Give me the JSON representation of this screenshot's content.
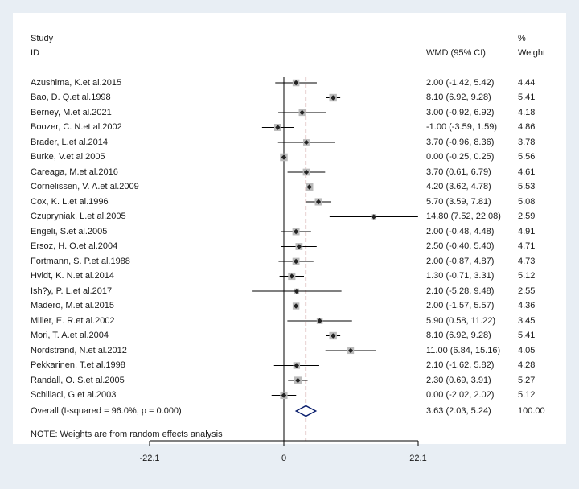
{
  "chart_data": {
    "type": "forest",
    "header": {
      "study_line1": "Study",
      "study_line2": "ID",
      "effect": "WMD (95% CI)",
      "weight_line1": "%",
      "weight_line2": "Weight"
    },
    "studies": [
      {
        "id": "Azushima, K.et al.2015",
        "est": 2.0,
        "lo": -1.42,
        "hi": 5.42,
        "weight": 4.44,
        "ci_text": "2.00 (-1.42, 5.42)",
        "weight_text": "4.44"
      },
      {
        "id": "Bao, D. Q.et al.1998",
        "est": 8.1,
        "lo": 6.92,
        "hi": 9.28,
        "weight": 5.41,
        "ci_text": "8.10 (6.92, 9.28)",
        "weight_text": "5.41"
      },
      {
        "id": "Berney, M.et al.2021",
        "est": 3.0,
        "lo": -0.92,
        "hi": 6.92,
        "weight": 4.18,
        "ci_text": "3.00 (-0.92, 6.92)",
        "weight_text": "4.18"
      },
      {
        "id": "Boozer, C. N.et al.2002",
        "est": -1.0,
        "lo": -3.59,
        "hi": 1.59,
        "weight": 4.86,
        "ci_text": "-1.00 (-3.59, 1.59)",
        "weight_text": "4.86"
      },
      {
        "id": "Brader, L.et al.2014",
        "est": 3.7,
        "lo": -0.96,
        "hi": 8.36,
        "weight": 3.78,
        "ci_text": "3.70 (-0.96, 8.36)",
        "weight_text": "3.78"
      },
      {
        "id": "Burke, V.et al.2005",
        "est": 0.0,
        "lo": -0.25,
        "hi": 0.25,
        "weight": 5.56,
        "ci_text": "0.00 (-0.25, 0.25)",
        "weight_text": "5.56"
      },
      {
        "id": "Careaga, M.et al.2016",
        "est": 3.7,
        "lo": 0.61,
        "hi": 6.79,
        "weight": 4.61,
        "ci_text": "3.70 (0.61, 6.79)",
        "weight_text": "4.61"
      },
      {
        "id": "Cornelissen, V. A.et al.2009",
        "est": 4.2,
        "lo": 3.62,
        "hi": 4.78,
        "weight": 5.53,
        "ci_text": "4.20 (3.62, 4.78)",
        "weight_text": "5.53"
      },
      {
        "id": "Cox, K. L.et al.1996",
        "est": 5.7,
        "lo": 3.59,
        "hi": 7.81,
        "weight": 5.08,
        "ci_text": "5.70 (3.59, 7.81)",
        "weight_text": "5.08"
      },
      {
        "id": "Czupryniak, L.et al.2005",
        "est": 14.8,
        "lo": 7.52,
        "hi": 22.08,
        "weight": 2.59,
        "ci_text": "14.80 (7.52, 22.08)",
        "weight_text": "2.59"
      },
      {
        "id": "Engeli, S.et al.2005",
        "est": 2.0,
        "lo": -0.48,
        "hi": 4.48,
        "weight": 4.91,
        "ci_text": "2.00 (-0.48, 4.48)",
        "weight_text": "4.91"
      },
      {
        "id": "Ersoz, H. O.et al.2004",
        "est": 2.5,
        "lo": -0.4,
        "hi": 5.4,
        "weight": 4.71,
        "ci_text": "2.50 (-0.40, 5.40)",
        "weight_text": "4.71"
      },
      {
        "id": "Fortmann, S. P.et al.1988",
        "est": 2.0,
        "lo": -0.87,
        "hi": 4.87,
        "weight": 4.73,
        "ci_text": "2.00 (-0.87, 4.87)",
        "weight_text": "4.73"
      },
      {
        "id": "Hvidt, K. N.et al.2014",
        "est": 1.3,
        "lo": -0.71,
        "hi": 3.31,
        "weight": 5.12,
        "ci_text": "1.30 (-0.71, 3.31)",
        "weight_text": "5.12"
      },
      {
        "id": "Ish?y, P. L.et al.2017",
        "est": 2.1,
        "lo": -5.28,
        "hi": 9.48,
        "weight": 2.55,
        "ci_text": "2.10 (-5.28, 9.48)",
        "weight_text": "2.55"
      },
      {
        "id": "Madero, M.et al.2015",
        "est": 2.0,
        "lo": -1.57,
        "hi": 5.57,
        "weight": 4.36,
        "ci_text": "2.00 (-1.57, 5.57)",
        "weight_text": "4.36"
      },
      {
        "id": "Miller, E. R.et al.2002",
        "est": 5.9,
        "lo": 0.58,
        "hi": 11.22,
        "weight": 3.45,
        "ci_text": "5.90 (0.58, 11.22)",
        "weight_text": "3.45"
      },
      {
        "id": "Mori, T. A.et al.2004",
        "est": 8.1,
        "lo": 6.92,
        "hi": 9.28,
        "weight": 5.41,
        "ci_text": "8.10 (6.92, 9.28)",
        "weight_text": "5.41"
      },
      {
        "id": "Nordstrand, N.et al.2012",
        "est": 11.0,
        "lo": 6.84,
        "hi": 15.16,
        "weight": 4.05,
        "ci_text": "11.00 (6.84, 15.16)",
        "weight_text": "4.05"
      },
      {
        "id": "Pekkarinen, T.et al.1998",
        "est": 2.1,
        "lo": -1.62,
        "hi": 5.82,
        "weight": 4.28,
        "ci_text": "2.10 (-1.62, 5.82)",
        "weight_text": "4.28"
      },
      {
        "id": "Randall, O. S.et al.2005",
        "est": 2.3,
        "lo": 0.69,
        "hi": 3.91,
        "weight": 5.27,
        "ci_text": "2.30 (0.69, 3.91)",
        "weight_text": "5.27"
      },
      {
        "id": "Schillaci, G.et al.2003",
        "est": 0.0,
        "lo": -2.02,
        "hi": 2.02,
        "weight": 5.12,
        "ci_text": "0.00 (-2.02, 2.02)",
        "weight_text": "5.12"
      }
    ],
    "overall": {
      "label": "Overall  (I-squared = 96.0%, p = 0.000)",
      "est": 3.63,
      "lo": 2.03,
      "hi": 5.24,
      "ci_text": "3.63 (2.03, 5.24)",
      "weight_text": "100.00"
    },
    "note": "NOTE: Weights are from random effects analysis",
    "x_ticks": [
      {
        "value": -22.1,
        "label": "-22.1"
      },
      {
        "value": 0,
        "label": "0"
      },
      {
        "value": 22.1,
        "label": "22.1"
      }
    ],
    "xlim": [
      -22.1,
      22.1
    ],
    "colors": {
      "line": "#000000",
      "box": "#bbbbbb",
      "point": "#222222",
      "overall_line": "#8b1a1a",
      "diamond": "#0b1f6e",
      "background": "#e8eef4"
    }
  }
}
